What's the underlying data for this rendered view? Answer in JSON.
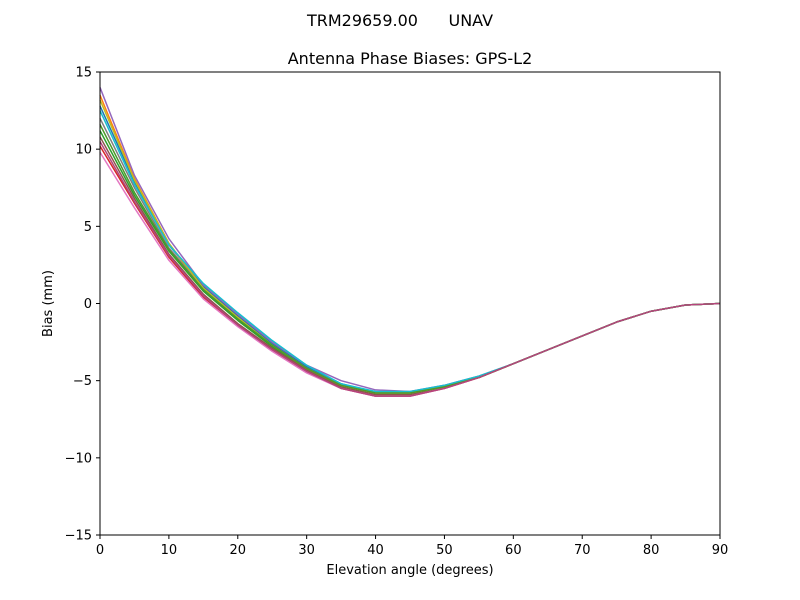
{
  "figure": {
    "suptitle": "TRM29659.00      UNAV"
  },
  "chart_data": {
    "type": "line",
    "title": "Antenna Phase Biases: GPS-L2",
    "xlabel": "Elevation angle (degrees)",
    "ylabel": "Bias (mm)",
    "xlim": [
      0,
      90
    ],
    "ylim": [
      -15,
      15
    ],
    "xticks": [
      "0",
      "10",
      "20",
      "30",
      "40",
      "50",
      "60",
      "70",
      "80",
      "90"
    ],
    "yticks": [
      "15",
      "10",
      "5",
      "0",
      "−5",
      "−10",
      "−15"
    ],
    "grid": false,
    "legend": "none",
    "x": [
      0,
      5,
      10,
      15,
      20,
      25,
      30,
      35,
      40,
      45,
      50,
      55,
      60,
      65,
      70,
      75,
      80,
      85,
      90
    ],
    "series": [
      {
        "color": "#1f77b4",
        "values": [
          12.8,
          7.9,
          3.8,
          1.1,
          -0.8,
          -2.6,
          -4.1,
          -5.2,
          -5.8,
          -5.8,
          -5.4,
          -4.8,
          -3.9,
          -3.0,
          -2.1,
          -1.2,
          -0.5,
          -0.1,
          0.0
        ]
      },
      {
        "color": "#ff7f0e",
        "values": [
          13.5,
          8.1,
          3.9,
          0.9,
          -1.0,
          -2.8,
          -4.3,
          -5.4,
          -5.9,
          -5.9,
          -5.5,
          -4.8,
          -3.9,
          -3.0,
          -2.1,
          -1.2,
          -0.5,
          -0.1,
          0.0
        ]
      },
      {
        "color": "#2ca02c",
        "values": [
          11.2,
          7.0,
          3.4,
          0.8,
          -1.1,
          -2.8,
          -4.3,
          -5.4,
          -5.9,
          -5.9,
          -5.4,
          -4.8,
          -3.9,
          -3.0,
          -2.1,
          -1.2,
          -0.5,
          -0.1,
          0.0
        ]
      },
      {
        "color": "#d62728",
        "values": [
          10.2,
          6.5,
          3.0,
          0.4,
          -1.4,
          -3.0,
          -4.4,
          -5.5,
          -6.0,
          -6.0,
          -5.5,
          -4.8,
          -3.9,
          -3.0,
          -2.1,
          -1.2,
          -0.5,
          -0.1,
          0.0
        ]
      },
      {
        "color": "#9467bd",
        "values": [
          14.0,
          8.3,
          4.2,
          1.2,
          -0.7,
          -2.5,
          -4.0,
          -5.0,
          -5.6,
          -5.7,
          -5.3,
          -4.7,
          -3.9,
          -3.0,
          -2.1,
          -1.2,
          -0.5,
          -0.1,
          0.0
        ]
      },
      {
        "color": "#8c564b",
        "values": [
          10.8,
          6.8,
          3.2,
          0.6,
          -1.3,
          -2.9,
          -4.3,
          -5.4,
          -5.9,
          -5.9,
          -5.4,
          -4.8,
          -3.9,
          -3.0,
          -2.1,
          -1.2,
          -0.5,
          -0.1,
          0.0
        ]
      },
      {
        "color": "#e377c2",
        "values": [
          9.8,
          6.2,
          2.8,
          0.3,
          -1.5,
          -3.1,
          -4.5,
          -5.5,
          -6.0,
          -6.0,
          -5.5,
          -4.8,
          -3.9,
          -3.0,
          -2.1,
          -1.2,
          -0.5,
          -0.1,
          0.0
        ]
      },
      {
        "color": "#7f7f7f",
        "values": [
          12.0,
          7.5,
          3.6,
          1.0,
          -0.9,
          -2.7,
          -4.2,
          -5.3,
          -5.8,
          -5.8,
          -5.4,
          -4.8,
          -3.9,
          -3.0,
          -2.1,
          -1.2,
          -0.5,
          -0.1,
          0.0
        ]
      },
      {
        "color": "#bcbd22",
        "values": [
          13.2,
          8.0,
          3.9,
          1.0,
          -0.9,
          -2.7,
          -4.2,
          -5.3,
          -5.8,
          -5.8,
          -5.4,
          -4.8,
          -3.9,
          -3.0,
          -2.1,
          -1.2,
          -0.5,
          -0.1,
          0.0
        ]
      },
      {
        "color": "#17becf",
        "values": [
          12.5,
          7.7,
          3.8,
          1.3,
          -0.6,
          -2.4,
          -4.0,
          -5.2,
          -5.7,
          -5.7,
          -5.3,
          -4.7,
          -3.9,
          -3.0,
          -2.1,
          -1.2,
          -0.5,
          -0.1,
          0.0
        ]
      },
      {
        "color": "#4c9a2a",
        "values": [
          11.6,
          7.2,
          3.5,
          0.9,
          -1.0,
          -2.7,
          -4.2,
          -5.3,
          -5.8,
          -5.8,
          -5.4,
          -4.8,
          -3.9,
          -3.0,
          -2.1,
          -1.2,
          -0.5,
          -0.1,
          0.0
        ]
      },
      {
        "color": "#b5447c",
        "values": [
          10.5,
          6.6,
          3.1,
          0.5,
          -1.4,
          -3.0,
          -4.4,
          -5.5,
          -6.0,
          -6.0,
          -5.5,
          -4.8,
          -3.9,
          -3.0,
          -2.1,
          -1.2,
          -0.5,
          -0.1,
          0.0
        ]
      }
    ]
  }
}
